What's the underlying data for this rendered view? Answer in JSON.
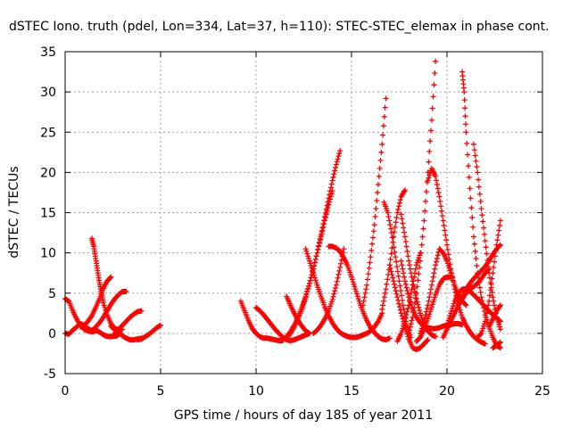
{
  "chart_data": {
    "type": "scatter",
    "title": "dSTEC Iono. truth (pdel, Lon=334, Lat=37, h=110): STEC-STEC_elemax in phase cont.",
    "xlabel": "GPS time / hours of day 185 of year 2011",
    "ylabel": "dSTEC  / TECUs",
    "xlim": [
      0,
      25
    ],
    "ylim": [
      -5,
      35
    ],
    "xticks": [
      0,
      5,
      10,
      15,
      20,
      25
    ],
    "yticks": [
      -5,
      0,
      5,
      10,
      15,
      20,
      25,
      30,
      35
    ],
    "grid": true,
    "marker": "+",
    "color": "#ff0000",
    "series": [
      {
        "x": [
          0.0,
          0.2,
          0.4,
          0.6,
          0.8,
          1.0,
          1.2,
          1.4,
          1.6
        ],
        "y": [
          4.3,
          4.0,
          2.8,
          1.8,
          1.0,
          0.5,
          0.3,
          0.2,
          0.3
        ]
      },
      {
        "x": [
          0.0,
          0.2,
          0.4,
          0.6,
          0.8,
          1.0,
          1.2,
          1.4
        ],
        "y": [
          0.0,
          -0.1,
          0.4,
          0.8,
          1.2,
          1.0,
          0.6,
          0.3
        ]
      },
      {
        "x": [
          1.3,
          1.5,
          1.7,
          1.9,
          2.1,
          2.3,
          2.5,
          2.7,
          2.9
        ],
        "y": [
          0.3,
          0.5,
          0.3,
          0.0,
          -0.3,
          -0.4,
          -0.4,
          -0.3,
          0.0
        ]
      },
      {
        "x": [
          1.4,
          1.5,
          1.6,
          1.7,
          1.8,
          1.9,
          2.0,
          2.2,
          2.4,
          2.6,
          2.8,
          3.0
        ],
        "y": [
          11.8,
          10.8,
          9.3,
          7.8,
          6.3,
          5.0,
          3.8,
          2.3,
          1.2,
          0.6,
          0.4,
          0.5
        ]
      },
      {
        "x": [
          0.8,
          1.0,
          1.2,
          1.4,
          1.6,
          1.8,
          2.0,
          2.2,
          2.4
        ],
        "y": [
          0.8,
          1.0,
          1.5,
          2.2,
          3.2,
          4.3,
          5.6,
          6.5,
          7.0
        ]
      },
      {
        "x": [
          1.6,
          1.8,
          2.0,
          2.2,
          2.4,
          2.6,
          2.8,
          3.0,
          3.2
        ],
        "y": [
          0.8,
          1.3,
          2.0,
          2.8,
          3.6,
          4.3,
          4.8,
          5.2,
          5.2
        ]
      },
      {
        "x": [
          2.4,
          2.6,
          2.8,
          3.0,
          3.2,
          3.4,
          3.6,
          3.8,
          4.0
        ],
        "y": [
          0.9,
          0.4,
          0.1,
          -0.3,
          -0.6,
          -0.8,
          -0.8,
          -0.7,
          -0.6
        ]
      },
      {
        "x": [
          2.6,
          2.8,
          3.0,
          3.2,
          3.4,
          3.6,
          3.8,
          4.0
        ],
        "y": [
          0.0,
          0.5,
          1.0,
          1.5,
          2.0,
          2.4,
          2.7,
          2.8
        ]
      },
      {
        "x": [
          3.8,
          4.0,
          4.2,
          4.4,
          4.6,
          4.8,
          5.0
        ],
        "y": [
          -0.8,
          -0.7,
          -0.4,
          -0.1,
          0.3,
          0.7,
          1.0
        ]
      },
      {
        "x": [
          9.2,
          9.4,
          9.6,
          9.8,
          10.0,
          10.2,
          10.4,
          10.6,
          10.8,
          11.0,
          11.2,
          11.4
        ],
        "y": [
          4.0,
          2.8,
          1.6,
          0.6,
          0.0,
          -0.4,
          -0.6,
          -0.6,
          -0.7,
          -0.8,
          -0.9,
          -0.9
        ]
      },
      {
        "x": [
          10.0,
          10.2,
          10.4,
          10.6,
          10.8,
          11.0,
          11.2,
          11.4,
          11.6,
          11.8,
          12.0,
          12.2,
          12.4,
          12.6,
          12.8
        ],
        "y": [
          3.2,
          2.8,
          2.3,
          1.7,
          1.1,
          0.5,
          0.0,
          -0.5,
          -0.8,
          -0.9,
          -0.8,
          -0.6,
          -0.4,
          -0.2,
          0.0
        ]
      },
      {
        "x": [
          11.4,
          11.6,
          11.8,
          12.0,
          12.2,
          12.4,
          12.6,
          12.8,
          13.0,
          13.2,
          13.4,
          13.6,
          13.8,
          14.0,
          14.2,
          14.4
        ],
        "y": [
          -0.8,
          -0.4,
          0.2,
          1.0,
          2.0,
          3.2,
          4.6,
          6.2,
          8.0,
          10.0,
          12.2,
          14.5,
          16.8,
          19.0,
          21.0,
          22.7
        ]
      },
      {
        "x": [
          11.6,
          11.8,
          12.0,
          12.2,
          12.4,
          12.6,
          12.8,
          13.0,
          13.2,
          13.4,
          13.6,
          13.8,
          14.0
        ],
        "y": [
          -0.6,
          0.0,
          0.8,
          1.8,
          3.0,
          4.5,
          6.2,
          8.0,
          10.0,
          12.0,
          14.0,
          16.0,
          17.7
        ]
      },
      {
        "x": [
          11.6,
          11.8,
          12.0,
          12.2,
          12.4,
          12.6,
          12.8
        ],
        "y": [
          4.6,
          3.5,
          2.5,
          1.6,
          0.9,
          0.3,
          0.0
        ]
      },
      {
        "x": [
          12.6,
          12.8,
          13.0,
          13.2,
          13.4,
          13.6,
          13.8,
          14.0,
          14.2,
          14.4,
          14.6,
          14.8,
          15.0,
          15.2,
          15.4,
          15.6,
          15.8,
          16.0,
          16.2,
          16.4,
          16.6
        ],
        "y": [
          10.5,
          9.0,
          7.5,
          6.0,
          4.6,
          3.3,
          2.2,
          1.3,
          0.6,
          0.1,
          -0.2,
          -0.4,
          -0.5,
          -0.5,
          -0.4,
          -0.2,
          0.0,
          0.3,
          0.8,
          1.5,
          2.5
        ]
      },
      {
        "x": [
          13.0,
          13.2,
          13.4,
          13.6,
          13.8,
          14.0,
          14.2,
          14.4,
          14.6
        ],
        "y": [
          0.0,
          0.4,
          1.0,
          1.8,
          2.8,
          4.2,
          6.0,
          8.2,
          10.5
        ]
      },
      {
        "x": [
          13.8,
          14.0,
          14.2,
          14.4,
          14.6,
          14.8,
          15.0,
          15.2,
          15.4,
          15.6,
          15.8,
          16.0,
          16.2,
          16.4,
          16.6,
          16.8,
          17.0
        ],
        "y": [
          10.8,
          10.8,
          10.6,
          10.2,
          9.4,
          8.4,
          7.0,
          5.5,
          4.0,
          2.7,
          1.6,
          0.7,
          0.1,
          -0.4,
          -0.7,
          -0.8,
          -0.6
        ]
      },
      {
        "x": [
          15.6,
          15.8,
          16.0,
          16.2,
          16.4,
          16.6,
          16.8
        ],
        "y": [
          3.5,
          6.0,
          9.5,
          13.5,
          18.5,
          23.5,
          29.2
        ]
      },
      {
        "x": [
          16.6,
          16.8,
          17.0,
          17.2,
          17.4,
          17.6,
          17.8
        ],
        "y": [
          3.0,
          5.5,
          8.5,
          12.0,
          15.0,
          17.0,
          17.8
        ]
      },
      {
        "x": [
          16.7,
          16.9,
          17.1,
          17.3,
          17.5,
          17.7,
          17.9,
          18.1
        ],
        "y": [
          16.3,
          15.0,
          12.5,
          9.5,
          6.5,
          3.5,
          1.0,
          -0.5
        ]
      },
      {
        "x": [
          17.0,
          17.2,
          17.4,
          17.6,
          17.8,
          18.0,
          18.2,
          18.4,
          18.6,
          18.8,
          19.0
        ],
        "y": [
          8.5,
          6.5,
          4.5,
          2.5,
          0.8,
          -0.7,
          -1.8,
          -2.0,
          -1.8,
          -1.3,
          -0.8
        ]
      },
      {
        "x": [
          17.4,
          17.6,
          17.8,
          18.0,
          18.2,
          18.4,
          18.6
        ],
        "y": [
          -1.0,
          0.0,
          1.5,
          3.5,
          6.0,
          8.5,
          10.0
        ]
      },
      {
        "x": [
          17.6,
          17.8,
          18.0,
          18.2,
          18.4,
          18.6,
          18.8,
          19.0,
          19.2,
          19.4
        ],
        "y": [
          14.8,
          12.0,
          9.0,
          6.5,
          4.3,
          2.5,
          1.2,
          0.3,
          -0.2,
          -0.4
        ]
      },
      {
        "x": [
          17.6,
          17.8,
          18.0,
          18.2,
          18.4,
          18.6,
          18.8,
          19.0,
          19.2,
          19.4,
          19.6,
          19.8,
          20.0,
          20.2,
          20.4,
          20.6,
          20.8
        ],
        "y": [
          9.0,
          6.5,
          4.5,
          3.0,
          2.0,
          1.3,
          0.9,
          0.7,
          0.6,
          0.6,
          0.7,
          0.9,
          1.0,
          1.1,
          1.2,
          1.2,
          1.1
        ]
      },
      {
        "x": [
          18.0,
          18.2,
          18.4,
          18.6,
          18.8,
          19.0,
          19.2,
          19.4
        ],
        "y": [
          0.0,
          2.0,
          5.0,
          9.0,
          14.0,
          20.0,
          26.5,
          33.8
        ]
      },
      {
        "x": [
          18.4,
          18.6,
          18.8,
          19.0,
          19.2,
          19.4,
          19.6,
          19.8,
          20.0,
          20.2
        ],
        "y": [
          -1.0,
          -0.5,
          0.5,
          1.8,
          3.3,
          4.8,
          6.0,
          6.8,
          7.0,
          7.0
        ]
      },
      {
        "x": [
          18.6,
          18.8,
          19.0,
          19.2,
          19.4,
          19.6,
          19.8,
          20.0,
          20.2,
          20.4,
          20.6,
          20.8,
          21.0
        ],
        "y": [
          0.0,
          1.5,
          3.5,
          6.0,
          8.5,
          10.5,
          10.0,
          9.0,
          7.5,
          6.0,
          4.8,
          4.0,
          3.5
        ]
      },
      {
        "x": [
          19.0,
          19.2,
          19.4,
          19.6,
          19.8,
          20.0,
          20.2,
          20.4,
          20.6,
          20.8,
          21.0,
          21.2,
          21.4,
          21.6,
          21.8,
          22.0
        ],
        "y": [
          19.0,
          20.5,
          19.5,
          17.0,
          14.0,
          11.0,
          8.0,
          5.5,
          3.5,
          2.0,
          1.0,
          0.2,
          -0.4,
          -0.8,
          -1.1,
          -1.3
        ]
      },
      {
        "x": [
          19.8,
          20.0,
          20.2,
          20.4,
          20.6,
          20.8,
          21.0,
          21.2,
          21.4,
          21.6,
          21.8,
          22.0,
          22.2
        ],
        "y": [
          -0.5,
          0.5,
          1.5,
          2.5,
          3.5,
          4.3,
          5.0,
          5.5,
          5.8,
          6.2,
          6.8,
          7.5,
          8.0
        ]
      },
      {
        "x": [
          20.0,
          20.2,
          20.4,
          20.6,
          20.8,
          21.0,
          21.2,
          21.4,
          21.6,
          21.8,
          22.0,
          22.2,
          22.4,
          22.6,
          22.8
        ],
        "y": [
          1.0,
          2.5,
          4.0,
          5.0,
          5.5,
          5.5,
          5.2,
          4.8,
          4.3,
          3.8,
          3.3,
          2.8,
          2.3,
          1.9,
          1.5
        ]
      },
      {
        "x": [
          20.8,
          20.9,
          21.0,
          21.2,
          21.4,
          21.6,
          21.8,
          22.0,
          22.2,
          22.4,
          22.6,
          22.8
        ],
        "y": [
          32.5,
          30.0,
          25.0,
          18.0,
          12.0,
          7.5,
          4.5,
          2.3,
          0.8,
          -0.5,
          -1.5,
          -1.8
        ]
      },
      {
        "x": [
          21.4,
          21.6,
          21.8,
          22.0,
          22.2,
          22.4,
          22.6,
          22.8
        ],
        "y": [
          23.5,
          20.0,
          15.5,
          11.5,
          7.5,
          4.5,
          2.0,
          0.5
        ]
      },
      {
        "x": [
          20.6,
          20.8,
          21.0,
          21.2,
          21.4,
          21.6,
          21.8,
          22.0,
          22.2,
          22.4,
          22.6,
          22.8
        ],
        "y": [
          3.5,
          4.5,
          5.5,
          6.2,
          6.8,
          7.3,
          7.8,
          8.3,
          9.0,
          9.8,
          10.5,
          11.0
        ]
      },
      {
        "x": [
          21.6,
          21.8,
          22.0,
          22.2,
          22.4,
          22.6,
          22.8
        ],
        "y": [
          -0.5,
          0.0,
          1.5,
          4.0,
          7.5,
          11.0,
          14.0
        ]
      },
      {
        "x": [
          22.2,
          22.4,
          22.6,
          22.8
        ],
        "y": [
          0.8,
          1.8,
          2.8,
          3.5
        ]
      },
      {
        "x": [
          22.4,
          22.6,
          22.8
        ],
        "y": [
          -1.8,
          -1.5,
          -1.1
        ]
      }
    ]
  }
}
